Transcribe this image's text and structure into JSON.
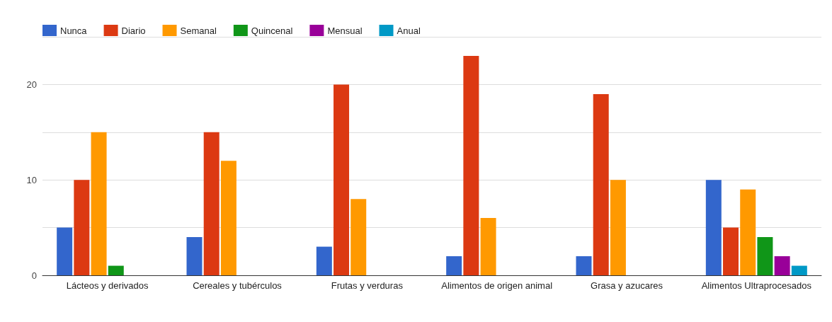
{
  "chart_data": {
    "type": "bar",
    "categories": [
      "Lácteos y derivados",
      "Cereales y tubérculos",
      "Frutas y verduras",
      "Alimentos de origen animal",
      "Grasa y azucares",
      "Alimentos Ultraprocesados"
    ],
    "series": [
      {
        "name": "Nunca",
        "color": "#3366cc",
        "values": [
          5,
          4,
          3,
          2,
          2,
          10
        ]
      },
      {
        "name": "Diario",
        "color": "#dc3912",
        "values": [
          10,
          15,
          20,
          23,
          19,
          5
        ]
      },
      {
        "name": "Semanal",
        "color": "#ff9900",
        "values": [
          15,
          12,
          8,
          6,
          10,
          9
        ]
      },
      {
        "name": "Quincenal",
        "color": "#109618",
        "values": [
          1,
          0,
          0,
          0,
          0,
          4
        ]
      },
      {
        "name": "Mensual",
        "color": "#990099",
        "values": [
          0,
          0,
          0,
          0,
          0,
          2
        ]
      },
      {
        "name": "Anual",
        "color": "#0099c6",
        "values": [
          0,
          0,
          0,
          0,
          0,
          1
        ]
      }
    ],
    "ylim": [
      0,
      25
    ],
    "yticks": [
      0,
      {
        "value": 5,
        "label": null
      },
      10,
      {
        "value": 15,
        "label": null
      },
      20,
      {
        "value": 25,
        "label": null
      }
    ],
    "grid": "y",
    "legend": "top left"
  }
}
